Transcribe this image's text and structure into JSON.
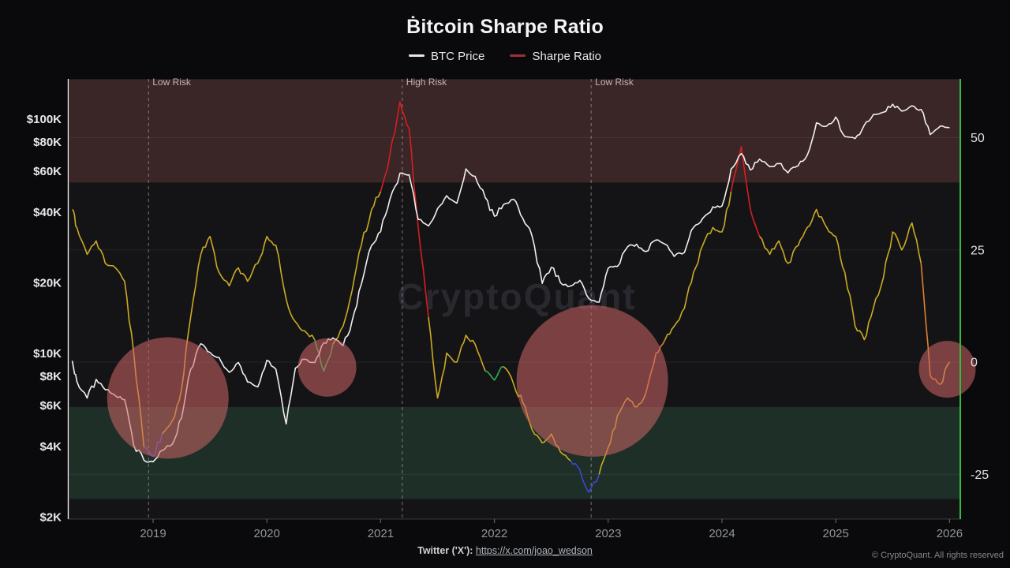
{
  "header": {
    "title": "Ḃitcoin Sharpe Ratio"
  },
  "watermark": "CryptoQuant",
  "footer": {
    "twitter_label": "Twitter ('X'):",
    "twitter_url": "https://x.com/joao_wedson",
    "copyright": "© CryptoQuant. All rights reserved"
  },
  "colors": {
    "background": "#0a0a0c",
    "plot_bg": "#141417",
    "high_risk_band": "#3a2527",
    "low_risk_band": "#1d2f26",
    "btc_line": "#f2eef0",
    "sharpe_line": "#ccaa22",
    "sharpe_red": "#d42020",
    "sharpe_green": "#2fae4e",
    "sharpe_blue": "#3c46d8",
    "sharpe_orange": "#e0812f",
    "highlight_circle": "rgba(205,100,102,0.55)",
    "right_border": "#2fbf3a",
    "marker_line": "#cdbdbe",
    "legend_btc_dash": "#e8e6e8",
    "legend_sharpe_dash": "#9b3136",
    "axis_label": "#e9e7ea",
    "year_label": "#8f949a",
    "watermark": "#28282e"
  },
  "chart_data": {
    "type": "line",
    "title": "Bitcoin Sharpe Ratio",
    "x_axis": {
      "ticks": [
        2019,
        2020,
        2021,
        2022,
        2023,
        2024,
        2025,
        2026
      ],
      "range": [
        2018.27,
        2026.1
      ]
    },
    "price_axis": {
      "side": "left",
      "scale": "log",
      "ticks": [
        {
          "label": "$100K",
          "value": 100000
        },
        {
          "label": "$80K",
          "value": 80000
        },
        {
          "label": "$60K",
          "value": 60000
        },
        {
          "label": "$40K",
          "value": 40000
        },
        {
          "label": "$20K",
          "value": 20000
        },
        {
          "label": "$10K",
          "value": 10000
        },
        {
          "label": "$8K",
          "value": 8000
        },
        {
          "label": "$6K",
          "value": 6000
        },
        {
          "label": "$4K",
          "value": 4000
        },
        {
          "label": "$2K",
          "value": 2000
        }
      ]
    },
    "sharpe_axis": {
      "side": "right",
      "ticks": [
        50,
        25,
        0,
        -25
      ],
      "range": [
        -35,
        63
      ]
    },
    "bands": [
      {
        "name": "high-risk-zone",
        "from": 40,
        "to": 63,
        "color": "#3a2527"
      },
      {
        "name": "low-risk-zone",
        "from": -30.5,
        "to": -10,
        "color": "#1d2f26"
      }
    ],
    "markers": [
      {
        "x": 2018.96,
        "label": "Low Risk"
      },
      {
        "x": 2021.19,
        "label": "High Risk"
      },
      {
        "x": 2022.85,
        "label": "Low Risk"
      }
    ],
    "highlight_circles": [
      {
        "x": 2019.13,
        "sharpe": -8,
        "r": 77
      },
      {
        "x": 2020.53,
        "sharpe": -1.2,
        "r": 37
      },
      {
        "x": 2022.86,
        "sharpe": -4.2,
        "r": 96
      },
      {
        "x": 2025.98,
        "sharpe": -1.6,
        "r": 36
      }
    ],
    "x": [
      2018.29,
      2018.33,
      2018.42,
      2018.5,
      2018.58,
      2018.67,
      2018.75,
      2018.83,
      2018.92,
      2019,
      2019.08,
      2019.17,
      2019.25,
      2019.33,
      2019.42,
      2019.5,
      2019.58,
      2019.67,
      2019.75,
      2019.83,
      2019.92,
      2020,
      2020.08,
      2020.17,
      2020.25,
      2020.33,
      2020.42,
      2020.5,
      2020.58,
      2020.67,
      2020.75,
      2020.83,
      2020.92,
      2021,
      2021.08,
      2021.17,
      2021.25,
      2021.33,
      2021.42,
      2021.5,
      2021.58,
      2021.67,
      2021.75,
      2021.83,
      2021.92,
      2022,
      2022.08,
      2022.17,
      2022.25,
      2022.33,
      2022.42,
      2022.5,
      2022.58,
      2022.67,
      2022.75,
      2022.83,
      2022.92,
      2023,
      2023.08,
      2023.17,
      2023.25,
      2023.33,
      2023.42,
      2023.5,
      2023.58,
      2023.67,
      2023.75,
      2023.83,
      2023.92,
      2024,
      2024.08,
      2024.17,
      2024.25,
      2024.33,
      2024.42,
      2024.5,
      2024.58,
      2024.67,
      2024.75,
      2024.83,
      2024.92,
      2025,
      2025.08,
      2025.17,
      2025.25,
      2025.33,
      2025.42,
      2025.5,
      2025.58,
      2025.67,
      2025.75,
      2025.83,
      2025.92,
      2026
    ],
    "series": [
      {
        "name": "BTC Price",
        "axis": "price",
        "color": "#f2eef0",
        "values": [
          9300,
          7600,
          6450,
          7750,
          7000,
          6600,
          6350,
          4050,
          3500,
          3450,
          3850,
          4100,
          5300,
          8550,
          11000,
          10100,
          9600,
          8300,
          9150,
          7550,
          7200,
          9350,
          8550,
          5000,
          8650,
          9450,
          9150,
          11100,
          11650,
          10800,
          13800,
          19700,
          28900,
          33100,
          45200,
          58800,
          57800,
          37300,
          35000,
          41500,
          47100,
          43800,
          61300,
          57000,
          46200,
          38500,
          43200,
          45500,
          37700,
          31800,
          19900,
          23300,
          20050,
          19400,
          20500,
          17150,
          16550,
          23100,
          23500,
          28500,
          29250,
          27200,
          30480,
          29230,
          25940,
          26960,
          34500,
          37700,
          42270,
          42580,
          61200,
          71300,
          60640,
          67500,
          62680,
          64620,
          58970,
          63330,
          70200,
          96400,
          93430,
          102100,
          84350,
          82550,
          94180,
          104600,
          107140,
          115760,
          108240,
          114000,
          109900,
          86000,
          93500,
          92000
        ]
      },
      {
        "name": "Sharpe Ratio",
        "axis": "sharpe",
        "color": "#ccaa22",
        "values": [
          34,
          30,
          24,
          27,
          22,
          21,
          18,
          2,
          -19,
          -21,
          -16,
          -13,
          -6,
          10,
          24,
          28,
          20,
          17,
          21,
          18,
          22,
          28,
          26,
          14,
          9,
          7,
          5,
          -2,
          4,
          8,
          16,
          26,
          34,
          38,
          46,
          58,
          52,
          30,
          10,
          -8,
          2,
          0,
          6,
          4,
          -2,
          -4,
          -1,
          -5,
          -9,
          -15,
          -18,
          -16,
          -20,
          -22,
          -24,
          -29,
          -25,
          -19,
          -12,
          -8,
          -10,
          -7,
          2,
          5,
          8,
          12,
          20,
          26,
          30,
          29,
          38,
          48,
          34,
          28,
          24,
          27,
          22,
          26,
          30,
          34,
          30,
          28,
          20,
          8,
          5,
          12,
          19,
          29,
          25,
          31,
          22,
          -3,
          -5,
          0
        ],
        "color_segments": [
          {
            "from": 2018.9,
            "to": 2019.1,
            "color": "#3c46d8"
          },
          {
            "from": 2020.44,
            "to": 2020.56,
            "color": "#2fae4e"
          },
          {
            "from": 2021.04,
            "to": 2021.38,
            "color": "#d42020"
          },
          {
            "from": 2021.96,
            "to": 2022.06,
            "color": "#2fae4e"
          },
          {
            "from": 2022.68,
            "to": 2022.94,
            "color": "#3c46d8"
          },
          {
            "from": 2023.36,
            "to": 2023.52,
            "color": "#e0812f"
          },
          {
            "from": 2024.1,
            "to": 2024.3,
            "color": "#d42020"
          },
          {
            "from": 2025.78,
            "to": 2025.95,
            "color": "#e0812f"
          }
        ]
      }
    ]
  }
}
